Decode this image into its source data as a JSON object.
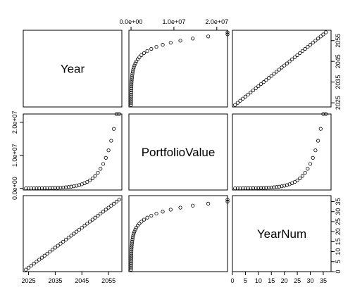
{
  "chart_data": {
    "type": "scatter",
    "variables": [
      "Year",
      "PortfolioValue",
      "YearNum"
    ],
    "axes": {
      "Year": {
        "range": [
          2023,
          2060
        ],
        "ticks": [
          2025,
          2035,
          2045,
          2055
        ],
        "tick_labels": [
          "2025",
          "2035",
          "2045",
          "2055"
        ]
      },
      "PortfolioValue": {
        "range": [
          -500000,
          22500000
        ],
        "ticks": [
          0,
          10000000,
          20000000
        ],
        "tick_labels": [
          "0.0e+00",
          "1.0e+07",
          "2.0e+07"
        ]
      },
      "YearNum": {
        "range": [
          0,
          38
        ],
        "ticks": [
          0,
          5,
          10,
          15,
          20,
          25,
          30,
          35
        ],
        "tick_labels": [
          "0",
          "5",
          "10",
          "15",
          "20",
          "25",
          "30",
          "35"
        ]
      }
    },
    "data": {
      "Year": [
        2024,
        2025,
        2026,
        2027,
        2028,
        2029,
        2030,
        2031,
        2032,
        2033,
        2034,
        2035,
        2036,
        2037,
        2038,
        2039,
        2040,
        2041,
        2042,
        2043,
        2044,
        2045,
        2046,
        2047,
        2048,
        2049,
        2050,
        2051,
        2052,
        2053,
        2054,
        2055,
        2056,
        2057,
        2058,
        2059
      ],
      "YearNum": [
        1,
        2,
        3,
        4,
        5,
        6,
        7,
        8,
        9,
        10,
        11,
        12,
        13,
        14,
        15,
        16,
        17,
        18,
        19,
        20,
        21,
        22,
        23,
        24,
        25,
        26,
        27,
        28,
        29,
        30,
        31,
        32,
        33,
        34,
        35,
        36
      ],
      "PortfolioValue": [
        11500,
        14300,
        17900,
        22300,
        27900,
        34900,
        43600,
        54500,
        68100,
        85100,
        106000,
        133000,
        166000,
        208000,
        260000,
        325000,
        406000,
        507000,
        634000,
        793000,
        991000,
        1240000,
        1550000,
        1940000,
        2420000,
        3030000,
        3780000,
        4730000,
        5910000,
        7390000,
        9240000,
        11500000,
        14400000,
        18000000,
        22500000,
        22500000
      ]
    },
    "title": "",
    "xlabel": "",
    "ylabel": "",
    "grid": false,
    "legend": "none"
  }
}
